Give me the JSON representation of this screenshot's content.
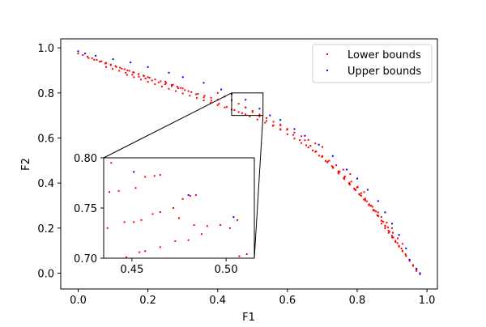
{
  "chart_data": {
    "type": "scatter",
    "title": "",
    "xlabel": "F1",
    "ylabel": "F2",
    "xlim": [
      -0.05,
      1.03
    ],
    "ylim": [
      -0.07,
      1.04
    ],
    "xticks": [
      0.0,
      0.2,
      0.4,
      0.6,
      0.8,
      1.0
    ],
    "xtick_labels": [
      "0.0",
      "0.2",
      "0.4",
      "0.6",
      "0.8",
      "1.0"
    ],
    "yticks": [
      0.0,
      0.2,
      0.4,
      0.6,
      0.8,
      1.0
    ],
    "ytick_labels": [
      "0.0",
      "0.2",
      "0.4",
      "0.6",
      "0.8",
      "1.0"
    ],
    "grid": false,
    "legend_position": "top-right",
    "series": [
      {
        "name": "Lower bounds",
        "color": "#ff0000",
        "bands": [
          {
            "start": [
              0.0,
              0.975
            ],
            "end": [
              0.2,
              0.87
            ],
            "count": 16
          },
          {
            "start": [
              0.03,
              0.955
            ],
            "end": [
              0.3,
              0.82
            ],
            "count": 18
          },
          {
            "start": [
              0.08,
              0.915
            ],
            "end": [
              0.4,
              0.77
            ],
            "count": 18
          },
          {
            "start": [
              0.14,
              0.88
            ],
            "end": [
              0.48,
              0.705
            ],
            "count": 18
          },
          {
            "start": [
              0.25,
              0.85
            ],
            "end": [
              0.58,
              0.64
            ],
            "count": 16
          },
          {
            "start": [
              0.4,
              0.8
            ],
            "end": [
              0.7,
              0.56
            ],
            "count": 16
          },
          {
            "start": [
              0.48,
              0.735
            ],
            "end": [
              0.78,
              0.44
            ],
            "count": 16
          },
          {
            "start": [
              0.58,
              0.66
            ],
            "end": [
              0.82,
              0.36
            ],
            "count": 14
          },
          {
            "start": [
              0.65,
              0.59
            ],
            "end": [
              0.86,
              0.27
            ],
            "count": 14
          },
          {
            "start": [
              0.7,
              0.52
            ],
            "end": [
              0.9,
              0.2
            ],
            "count": 14
          },
          {
            "start": [
              0.75,
              0.45
            ],
            "end": [
              0.93,
              0.13
            ],
            "count": 14
          },
          {
            "start": [
              0.8,
              0.38
            ],
            "end": [
              0.95,
              0.06
            ],
            "count": 14
          },
          {
            "start": [
              0.84,
              0.3
            ],
            "end": [
              0.97,
              0.01
            ],
            "count": 14
          },
          {
            "start": [
              0.87,
              0.22
            ],
            "end": [
              0.98,
              -0.005
            ],
            "count": 12
          }
        ]
      },
      {
        "name": "Upper bounds",
        "color": "#0000ff",
        "points": [
          [
            0.0,
            0.985
          ],
          [
            0.02,
            0.975
          ],
          [
            0.05,
            0.965
          ],
          [
            0.1,
            0.95
          ],
          [
            0.15,
            0.935
          ],
          [
            0.2,
            0.915
          ],
          [
            0.26,
            0.89
          ],
          [
            0.3,
            0.87
          ],
          [
            0.36,
            0.845
          ],
          [
            0.41,
            0.815
          ],
          [
            0.44,
            0.795
          ],
          [
            0.48,
            0.77
          ],
          [
            0.52,
            0.73
          ],
          [
            0.55,
            0.7
          ],
          [
            0.58,
            0.68
          ],
          [
            0.62,
            0.64
          ],
          [
            0.65,
            0.61
          ],
          [
            0.69,
            0.57
          ],
          [
            0.73,
            0.52
          ],
          [
            0.77,
            0.46
          ],
          [
            0.8,
            0.42
          ],
          [
            0.83,
            0.37
          ],
          [
            0.86,
            0.32
          ],
          [
            0.88,
            0.27
          ],
          [
            0.9,
            0.22
          ],
          [
            0.92,
            0.17
          ],
          [
            0.94,
            0.11
          ],
          [
            0.95,
            0.06
          ],
          [
            0.97,
            0.02
          ],
          [
            0.98,
            0.0
          ]
        ]
      }
    ],
    "inset": {
      "xlim": [
        0.435,
        0.515
      ],
      "ylim": [
        0.7,
        0.8
      ],
      "xticks": [
        0.45,
        0.5
      ],
      "xtick_labels": [
        "0.45",
        "0.50"
      ],
      "yticks": [
        0.7,
        0.75,
        0.8
      ],
      "ytick_labels": [
        "0.70",
        "0.75",
        "0.80"
      ],
      "lower_points": [
        [
          0.439,
          0.795
        ],
        [
          0.438,
          0.766
        ],
        [
          0.443,
          0.767
        ],
        [
          0.452,
          0.77
        ],
        [
          0.457,
          0.781
        ],
        [
          0.462,
          0.782
        ],
        [
          0.465,
          0.783
        ],
        [
          0.437,
          0.73
        ],
        [
          0.446,
          0.736
        ],
        [
          0.451,
          0.736
        ],
        [
          0.455,
          0.738
        ],
        [
          0.461,
          0.744
        ],
        [
          0.465,
          0.746
        ],
        [
          0.472,
          0.75
        ],
        [
          0.477,
          0.759
        ],
        [
          0.481,
          0.762
        ],
        [
          0.484,
          0.763
        ],
        [
          0.475,
          0.74
        ],
        [
          0.483,
          0.733
        ],
        [
          0.49,
          0.732
        ],
        [
          0.497,
          0.733
        ],
        [
          0.506,
          0.738
        ],
        [
          0.447,
          0.701
        ],
        [
          0.454,
          0.706
        ],
        [
          0.457,
          0.707
        ],
        [
          0.465,
          0.711
        ],
        [
          0.473,
          0.717
        ],
        [
          0.48,
          0.718
        ],
        [
          0.487,
          0.724
        ],
        [
          0.502,
          0.73
        ],
        [
          0.507,
          0.702
        ],
        [
          0.511,
          0.704
        ]
      ],
      "upper_points": [
        [
          0.451,
          0.786
        ],
        [
          0.48,
          0.763
        ],
        [
          0.504,
          0.741
        ]
      ],
      "zoom_region": {
        "x": [
          0.44,
          0.53
        ],
        "y": [
          0.7,
          0.8
        ]
      }
    }
  }
}
